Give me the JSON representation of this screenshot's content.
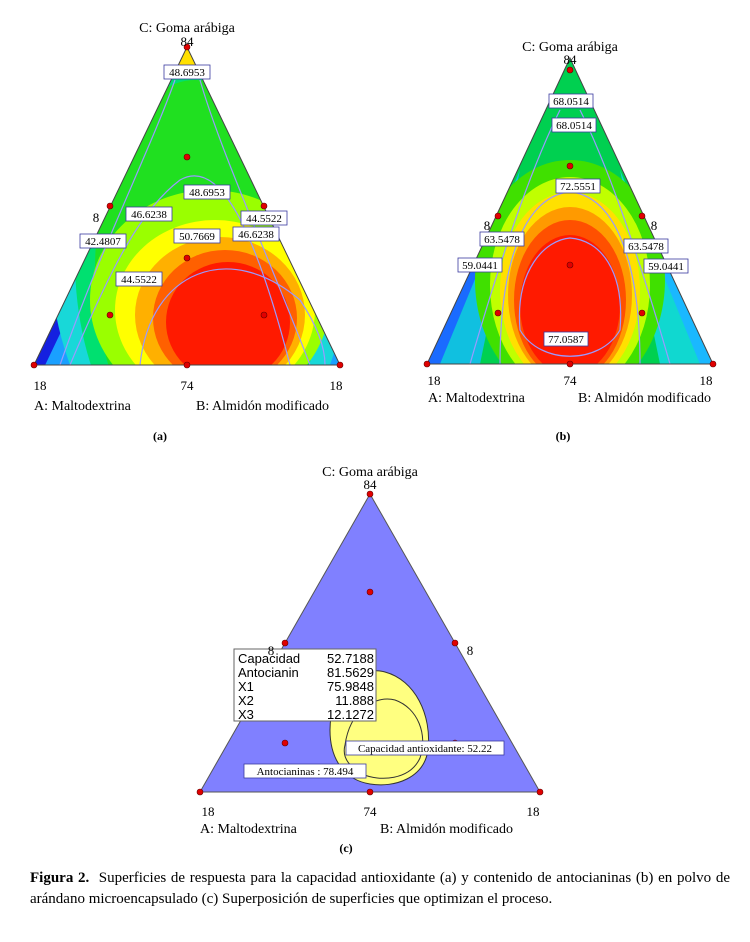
{
  "chart_data": [
    {
      "panel": "(a)",
      "type": "ternary contour",
      "vertex_top": "C: Goma arábiga",
      "vertex_left": "A: Maltodextrina",
      "vertex_right": "B: Almidón modificado",
      "tick_top": "84",
      "tick_bottom_left": "18",
      "tick_bottom_mid": "74",
      "tick_bottom_right": "18",
      "tick_side_left": "8",
      "tick_side_right": "",
      "contour_labels": [
        "48.6953",
        "48.6953",
        "46.6238",
        "44.5522",
        "42.4807",
        "46.6238",
        "50.7669",
        "44.5522"
      ]
    },
    {
      "panel": "(b)",
      "type": "ternary contour",
      "vertex_top": "C: Goma arábiga",
      "vertex_left": "A: Maltodextrina",
      "vertex_right": "B: Almidón modificado",
      "tick_top": "84",
      "tick_bottom_left": "18",
      "tick_bottom_mid": "74",
      "tick_bottom_right": "18",
      "tick_side_left": "8",
      "tick_side_right": "8",
      "contour_labels": [
        "68.0514",
        "68.0514",
        "72.5551",
        "63.5478",
        "63.5478",
        "59.0441",
        "59.0441",
        "77.0587"
      ]
    },
    {
      "panel": "(c)",
      "type": "ternary overlay",
      "vertex_top": "C: Goma arábiga",
      "vertex_left": "A: Maltodextrina",
      "vertex_right": "B: Almidón modificado",
      "tick_top": "84",
      "tick_bottom_left": "18",
      "tick_bottom_mid": "74",
      "tick_bottom_right": "18",
      "tick_side_left": "8",
      "tick_side_right": "8",
      "optimum": [
        {
          "label": "Capacidad",
          "value": "52.7188"
        },
        {
          "label": "Antocianin",
          "value": "81.5629"
        },
        {
          "label": "X1",
          "value": "75.9848"
        },
        {
          "label": "X2",
          "value": "11.888"
        },
        {
          "label": "X3",
          "value": "12.1272"
        }
      ],
      "contour_labels": [
        "Capacidad antioxidante: 52.22",
        "Antocianinas : 78.494"
      ],
      "colors": {
        "infeasible": "#8080ff",
        "feasible": "#ffff80"
      }
    }
  ],
  "caption": {
    "label": "Figura 2.",
    "text": "Superficies de respuesta para la capacidad antioxidante (a) y contenido de antocianinas (b) en polvo de arándano microencapsulado (c) Superposición de superficies que optimizan el proceso."
  }
}
